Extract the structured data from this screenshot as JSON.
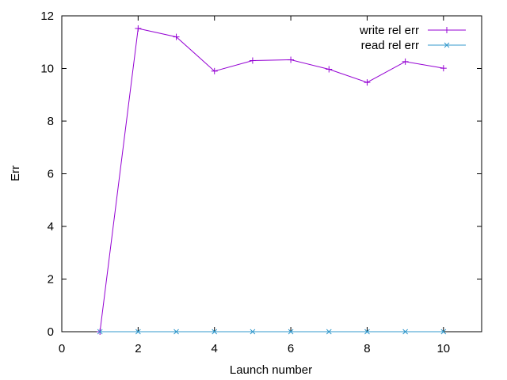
{
  "chart_data": {
    "type": "line",
    "xlabel": "Launch number",
    "ylabel": "Err",
    "xlim": [
      0,
      11
    ],
    "ylim": [
      0,
      12
    ],
    "xticks": [
      0,
      2,
      4,
      6,
      8,
      10
    ],
    "yticks": [
      0,
      2,
      4,
      6,
      8,
      10,
      12
    ],
    "grid": false,
    "legend": "top-right",
    "x": [
      1,
      2,
      3,
      4,
      5,
      6,
      7,
      8,
      9,
      10
    ],
    "series": [
      {
        "name": "write rel err",
        "color": "#9400d3",
        "marker": "plus",
        "values": [
          0.0,
          11.52,
          11.2,
          9.9,
          10.3,
          10.33,
          9.97,
          9.47,
          10.26,
          10.01
        ]
      },
      {
        "name": "read rel err",
        "color": "#3399cc",
        "marker": "cross",
        "values": [
          0.0,
          0.0,
          0.0,
          0.0,
          0.0,
          0.0,
          0.0,
          0.0,
          0.0,
          0.0
        ]
      }
    ]
  }
}
